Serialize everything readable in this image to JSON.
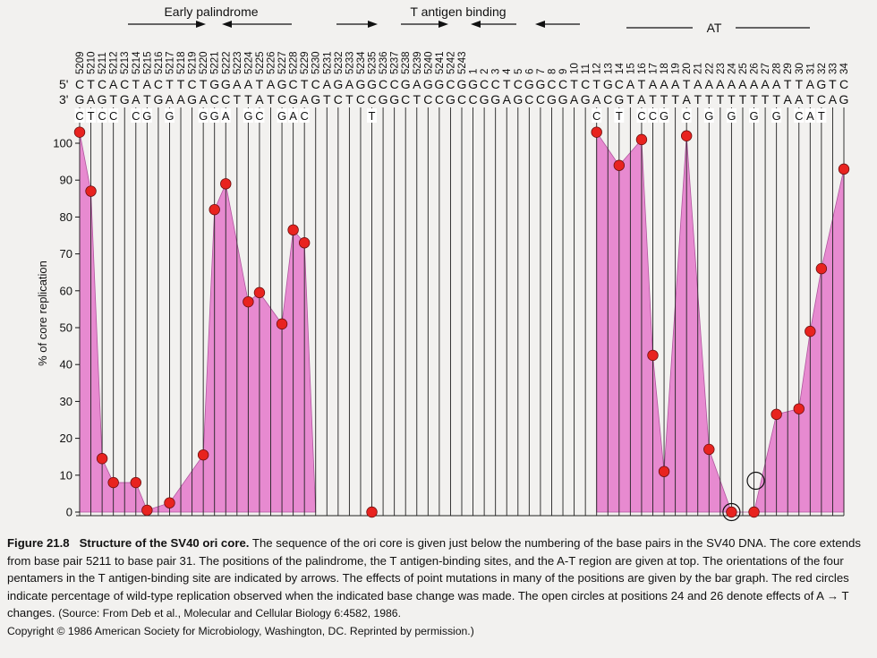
{
  "annotations": {
    "early_palindrome": "Early palindrome",
    "t_antigen_binding": "T antigen binding",
    "at_region": "AT"
  },
  "positions": [
    "5209",
    "5210",
    "5211",
    "5212",
    "5213",
    "5214",
    "5215",
    "5216",
    "5217",
    "5218",
    "5219",
    "5220",
    "5221",
    "5222",
    "5223",
    "5224",
    "5225",
    "5226",
    "5227",
    "5228",
    "5229",
    "5230",
    "5231",
    "5232",
    "5233",
    "5234",
    "5235",
    "5236",
    "5237",
    "5238",
    "5239",
    "5240",
    "5241",
    "5242",
    "5243",
    "1",
    "2",
    "3",
    "4",
    "5",
    "6",
    "7",
    "8",
    "9",
    "10",
    "11",
    "12",
    "13",
    "14",
    "15",
    "16",
    "17",
    "18",
    "19",
    "20",
    "21",
    "22",
    "23",
    "24",
    "25",
    "26",
    "27",
    "28",
    "29",
    "30",
    "31",
    "32",
    "33",
    "34"
  ],
  "sequence": {
    "top_prefix": "5'",
    "bottom_prefix": "3'",
    "top": "CTCACTACTTCTGGAATAGCTCAGAGGCCGAGGCGGCCTCGGCCTCTGCATAAATAAAAAAAATTAGTC",
    "bottom": "GAGTGATGAAGACCTTATCGAGTCTCCGGCTCCGCCGGAGCCGGAGACGTATTTATTTTTTTTAATCAG"
  },
  "chart_data": {
    "type": "area",
    "ylabel": "% of core replication",
    "ylim": [
      0,
      110
    ],
    "yticks": [
      0,
      10,
      20,
      30,
      40,
      50,
      60,
      70,
      80,
      90,
      100
    ],
    "mutations": [
      {
        "pos": 0,
        "base": "C",
        "value": 103
      },
      {
        "pos": 1,
        "base": "T",
        "value": 87
      },
      {
        "pos": 2,
        "base": "C",
        "value": 14.5
      },
      {
        "pos": 3,
        "base": "C",
        "value": 8
      },
      {
        "pos": 5,
        "base": "C",
        "value": 8
      },
      {
        "pos": 6,
        "base": "G",
        "value": 0.5
      },
      {
        "pos": 8,
        "base": "G",
        "value": 2.5
      },
      {
        "pos": 11,
        "base": "G",
        "value": 15.5
      },
      {
        "pos": 12,
        "base": "G",
        "value": 82
      },
      {
        "pos": 13,
        "base": "A",
        "value": 89
      },
      {
        "pos": 15,
        "base": "G",
        "value": 57
      },
      {
        "pos": 16,
        "base": "C",
        "value": 59.5
      },
      {
        "pos": 18,
        "base": "G",
        "value": 51
      },
      {
        "pos": 19,
        "base": "A",
        "value": 76.5
      },
      {
        "pos": 20,
        "base": "C",
        "value": 73
      },
      {
        "pos": 26,
        "base": "T",
        "value": 0
      },
      {
        "pos": 46,
        "base": "C",
        "value": 103
      },
      {
        "pos": 48,
        "base": "T",
        "value": 94
      },
      {
        "pos": 50,
        "base": "C",
        "value": 101
      },
      {
        "pos": 51,
        "base": "C",
        "value": 42.5
      },
      {
        "pos": 52,
        "base": "G",
        "value": 11
      },
      {
        "pos": 54,
        "base": "C",
        "value": 102
      },
      {
        "pos": 56,
        "base": "G",
        "value": 17
      },
      {
        "pos": 58,
        "base": "G",
        "value": 0,
        "open": true
      },
      {
        "pos": 60,
        "base": "G",
        "value": 0,
        "open_at": 8.5
      },
      {
        "pos": 62,
        "base": "G",
        "value": 26.5
      },
      {
        "pos": 64,
        "base": "C",
        "value": 28
      },
      {
        "pos": 65,
        "base": "A",
        "value": 49
      },
      {
        "pos": 66,
        "base": "T",
        "value": 66
      },
      {
        "pos": 68,
        "base": "",
        "value": 93
      }
    ],
    "segments": [
      [
        0,
        21
      ],
      [
        46,
        68
      ]
    ]
  },
  "caption": {
    "label": "Figure 21.8",
    "title": "Structure of the SV40 ori core.",
    "body": "The sequence of the ori core is given just below the numbering of the base pairs in the SV40 DNA. The core extends from base pair 5211 to base pair 31. The positions of the palindrome, the T antigen-binding sites, and the A-T region are given at top. The orientations of the four pentamers in the T antigen-binding site are indicated by arrows. The effects of point mutations in many of the positions are given by the bar graph. The red circles indicate percentage of wild-type replication observed when the indicated base change was made. The open circles at positions 24 and 26 denote effects of A → T changes.",
    "source": "(Source: From Deb et al., Molecular and Cellular Biology 6:4582, 1986.",
    "copyright": "Copyright © 1986 American Society for Microbiology, Washington, DC. Reprinted by permission.)"
  },
  "colors": {
    "fill": "#e78ad0",
    "fill_stroke": "#b0569e",
    "point": "#e8231f",
    "grid": "#222222"
  }
}
